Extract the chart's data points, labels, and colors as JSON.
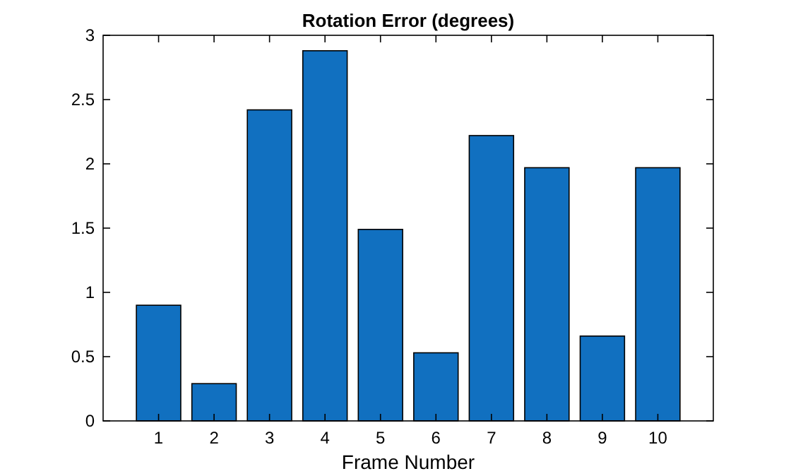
{
  "chart_data": {
    "type": "bar",
    "title": "Rotation Error (degrees)",
    "xlabel": "Frame Number",
    "categories": [
      "1",
      "2",
      "3",
      "4",
      "5",
      "6",
      "7",
      "8",
      "9",
      "10"
    ],
    "values": [
      0.9,
      0.29,
      2.42,
      2.88,
      1.49,
      0.53,
      2.22,
      1.97,
      0.66,
      1.97
    ],
    "color": "#1170c0",
    "ylim": [
      0,
      3
    ],
    "yticks": [
      0,
      {
        "value": 0.5,
        "label": "0.5"
      },
      1,
      {
        "value": 1.5,
        "label": "1.5"
      },
      2,
      {
        "value": 2.5,
        "label": "2.5"
      },
      3
    ],
    "grid": false
  }
}
